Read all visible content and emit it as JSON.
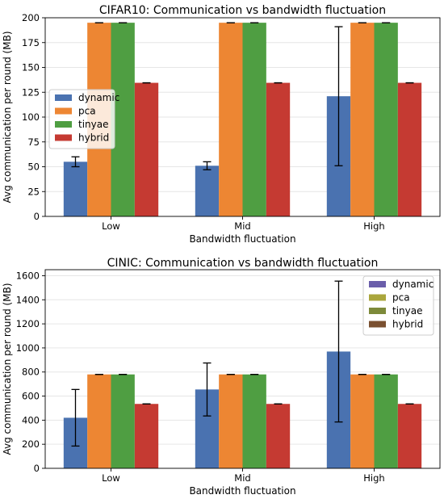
{
  "chart_data": [
    {
      "type": "bar",
      "title": "CIFAR10: Communication vs bandwidth fluctuation",
      "xlabel": "Bandwidth fluctuation",
      "ylabel": "Avg communication per round (MB)",
      "categories": [
        "Low",
        "Mid",
        "High"
      ],
      "ylim": [
        0,
        200
      ],
      "yticks": [
        0,
        25,
        50,
        75,
        100,
        125,
        150,
        175,
        200
      ],
      "grid": "horizontal",
      "legend_position": "center-left",
      "series": [
        {
          "name": "dynamic",
          "color": "#4a72b0",
          "values": [
            55,
            51,
            121
          ],
          "err_low": [
            50,
            47,
            51
          ],
          "err_high": [
            60,
            55,
            191
          ]
        },
        {
          "name": "pca",
          "color": "#ed8633",
          "values": [
            195,
            195,
            195
          ],
          "err_low": [
            195,
            195,
            195
          ],
          "err_high": [
            195,
            195,
            195
          ]
        },
        {
          "name": "tinyae",
          "color": "#4f9e42",
          "values": [
            195,
            195,
            195
          ],
          "err_low": [
            195,
            195,
            195
          ],
          "err_high": [
            195,
            195,
            195
          ]
        },
        {
          "name": "hybrid",
          "color": "#c53a32",
          "values": [
            134.5,
            134.5,
            134.5
          ],
          "err_low": [
            134.5,
            134.5,
            134.5
          ],
          "err_high": [
            134.5,
            134.5,
            134.5
          ]
        }
      ]
    },
    {
      "type": "bar",
      "title": "CINIC: Communication vs bandwidth fluctuation",
      "xlabel": "Bandwidth fluctuation",
      "ylabel": "Avg communication per round (MB)",
      "categories": [
        "Low",
        "Mid",
        "High"
      ],
      "ylim": [
        0,
        1650
      ],
      "yticks": [
        0,
        200,
        400,
        600,
        800,
        1000,
        1200,
        1400,
        1600
      ],
      "grid": "horizontal",
      "legend_position": "top-right",
      "series": [
        {
          "name": "dynamic",
          "color": "#4a72b0",
          "legend_color": "#6a5eaa",
          "values": [
            420,
            655,
            970
          ],
          "err_low": [
            185,
            435,
            385
          ],
          "err_high": [
            655,
            875,
            1555
          ]
        },
        {
          "name": "pca",
          "color": "#ed8633",
          "legend_color": "#aaa63c",
          "values": [
            780,
            780,
            780
          ],
          "err_low": [
            780,
            780,
            780
          ],
          "err_high": [
            780,
            780,
            780
          ]
        },
        {
          "name": "tinyae",
          "color": "#4f9e42",
          "legend_color": "#7d8a3a",
          "values": [
            780,
            780,
            780
          ],
          "err_low": [
            780,
            780,
            780
          ],
          "err_high": [
            780,
            780,
            780
          ]
        },
        {
          "name": "hybrid",
          "color": "#c53a32",
          "legend_color": "#7a5030",
          "values": [
            535,
            535,
            535
          ],
          "err_low": [
            535,
            535,
            535
          ],
          "err_high": [
            535,
            535,
            535
          ]
        }
      ]
    }
  ]
}
